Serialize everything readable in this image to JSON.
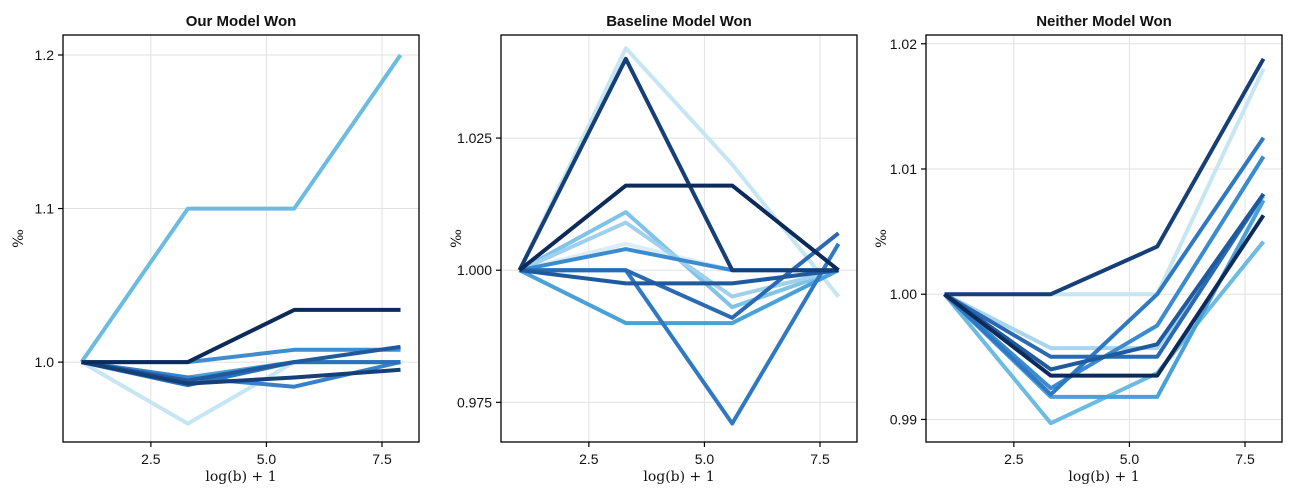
{
  "chart_data": [
    {
      "type": "line",
      "title": "Our Model Won",
      "xlabel": "log(b) + 1",
      "ylabel": "‰",
      "x": [
        1.0,
        3.3,
        5.6,
        7.9
      ],
      "xlim": [
        0.6,
        8.3
      ],
      "ylim": [
        0.948,
        1.213
      ],
      "xticks": [
        2.5,
        5.0,
        7.5
      ],
      "xtick_labels": [
        "2.5",
        "5.0",
        "7.5"
      ],
      "yticks": [
        1.0,
        1.1,
        1.2
      ],
      "ytick_labels": [
        "1.0",
        "1.1",
        "1.2"
      ],
      "grid": true,
      "series": [
        {
          "color": "#c6e6f3",
          "values": [
            1.0,
            0.96,
            1.0,
            1.0
          ]
        },
        {
          "color": "#6bbbe2",
          "values": [
            1.0,
            1.1,
            1.1,
            1.2
          ]
        },
        {
          "color": "#4a9fd8",
          "values": [
            1.0,
            0.99,
            1.0,
            1.0
          ]
        },
        {
          "color": "#3f8ccf",
          "values": [
            1.0,
            1.0,
            1.008,
            1.008
          ]
        },
        {
          "color": "#3a80c8",
          "values": [
            1.0,
            0.99,
            0.984,
            1.0
          ]
        },
        {
          "color": "#2f70b9",
          "values": [
            1.0,
            0.985,
            1.0,
            1.0
          ]
        },
        {
          "color": "#1f5a9e",
          "values": [
            1.0,
            0.988,
            1.0,
            1.01
          ]
        },
        {
          "color": "#163f78",
          "values": [
            1.0,
            0.986,
            0.99,
            0.995
          ]
        },
        {
          "color": "#0d2b5a",
          "values": [
            1.0,
            1.0,
            1.034,
            1.034
          ]
        }
      ]
    },
    {
      "type": "line",
      "title": "Baseline Model Won",
      "xlabel": "log(b) + 1",
      "ylabel": "‰",
      "x": [
        1.0,
        3.3,
        5.6,
        7.9
      ],
      "xlim": [
        0.6,
        8.3
      ],
      "ylim": [
        0.9675,
        1.0445
      ],
      "xticks": [
        2.5,
        5.0,
        7.5
      ],
      "xtick_labels": [
        "2.5",
        "5.0",
        "7.5"
      ],
      "yticks": [
        0.975,
        1.0,
        1.025
      ],
      "ytick_labels": [
        "0.975",
        "1.000",
        "1.025"
      ],
      "grid": true,
      "series": [
        {
          "color": "#c6e6f3",
          "values": [
            1.0,
            1.042,
            1.02,
            0.995
          ]
        },
        {
          "color": "#dcedf6",
          "values": [
            1.0,
            1.005,
            1.0,
            1.0
          ]
        },
        {
          "color": "#7fc3e8",
          "values": [
            1.0,
            1.011,
            0.993,
            1.0
          ]
        },
        {
          "color": "#9fd1ee",
          "values": [
            1.0,
            1.009,
            0.995,
            1.0
          ]
        },
        {
          "color": "#4aa0d9",
          "values": [
            1.0,
            0.99,
            0.99,
            1.0
          ]
        },
        {
          "color": "#3a8bd0",
          "values": [
            1.0,
            1.004,
            1.0,
            1.0
          ]
        },
        {
          "color": "#2f78c4",
          "values": [
            1.0,
            1.0,
            0.971,
            1.005
          ]
        },
        {
          "color": "#2a6ab2",
          "values": [
            1.0,
            1.0,
            0.991,
            1.007
          ]
        },
        {
          "color": "#1f5a9e",
          "values": [
            1.0,
            0.9975,
            0.9975,
            1.0
          ]
        },
        {
          "color": "#163f78",
          "values": [
            1.0,
            1.04,
            1.0,
            1.0
          ]
        },
        {
          "color": "#0d2b5a",
          "values": [
            1.0,
            1.016,
            1.016,
            1.0
          ]
        }
      ]
    },
    {
      "type": "line",
      "title": "Neither Model Won",
      "xlabel": "log(b) + 1",
      "ylabel": "‰",
      "x": [
        1.0,
        3.3,
        5.6,
        7.9
      ],
      "xlim": [
        0.6,
        8.3
      ],
      "ylim": [
        0.9882,
        1.0207
      ],
      "xticks": [
        2.5,
        5.0,
        7.5
      ],
      "xtick_labels": [
        "2.5",
        "5.0",
        "7.5"
      ],
      "yticks": [
        0.99,
        1.0,
        1.01,
        1.02
      ],
      "ytick_labels": [
        "0.99",
        "1.00",
        "1.01",
        "1.02"
      ],
      "grid": true,
      "series": [
        {
          "color": "#c6e6f3",
          "values": [
            1.0,
            1.0,
            1.0,
            1.018
          ]
        },
        {
          "color": "#a8d5ee",
          "values": [
            1.0,
            0.9957,
            0.9957,
            1.0078
          ]
        },
        {
          "color": "#6bbbe2",
          "values": [
            1.0,
            0.9897,
            0.9937,
            1.0042
          ]
        },
        {
          "color": "#4aa0d9",
          "values": [
            1.0,
            0.9918,
            0.9918,
            1.0075
          ]
        },
        {
          "color": "#3a8bd0",
          "values": [
            1.0,
            0.9925,
            0.9975,
            1.011
          ]
        },
        {
          "color": "#2f78c4",
          "values": [
            1.0,
            0.992,
            1.0,
            1.0125
          ]
        },
        {
          "color": "#2a6ab2",
          "values": [
            1.0,
            0.995,
            0.995,
            1.008
          ]
        },
        {
          "color": "#1f5a9e",
          "values": [
            1.0,
            0.994,
            0.996,
            1.008
          ]
        },
        {
          "color": "#163f78",
          "values": [
            1.0,
            1.0,
            1.0038,
            1.0188
          ]
        },
        {
          "color": "#0d2b5a",
          "values": [
            1.0,
            0.9935,
            0.9935,
            1.0063
          ]
        }
      ]
    }
  ]
}
